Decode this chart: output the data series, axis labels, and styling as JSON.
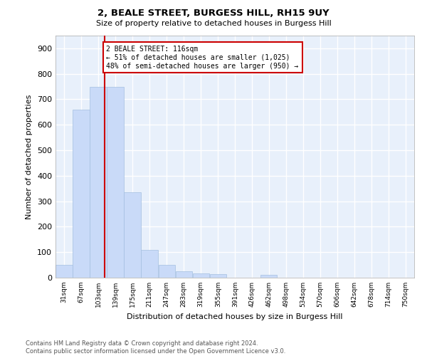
{
  "title1": "2, BEALE STREET, BURGESS HILL, RH15 9UY",
  "title2": "Size of property relative to detached houses in Burgess Hill",
  "xlabel": "Distribution of detached houses by size in Burgess Hill",
  "ylabel": "Number of detached properties",
  "bar_labels": [
    "31sqm",
    "67sqm",
    "103sqm",
    "139sqm",
    "175sqm",
    "211sqm",
    "247sqm",
    "283sqm",
    "319sqm",
    "355sqm",
    "391sqm",
    "426sqm",
    "462sqm",
    "498sqm",
    "534sqm",
    "570sqm",
    "606sqm",
    "642sqm",
    "678sqm",
    "714sqm",
    "750sqm"
  ],
  "bar_heights": [
    50,
    660,
    750,
    750,
    335,
    110,
    50,
    25,
    18,
    14,
    0,
    0,
    10,
    0,
    0,
    0,
    0,
    0,
    0,
    0,
    0
  ],
  "bar_color": "#c9daf8",
  "bar_edge_color": "#a4bfe0",
  "background_color": "#e8f0fb",
  "grid_color": "#ffffff",
  "property_line_color": "#cc0000",
  "annotation_text": "2 BEALE STREET: 116sqm\n← 51% of detached houses are smaller (1,025)\n48% of semi-detached houses are larger (950) →",
  "annotation_box_color": "#ffffff",
  "annotation_box_edge": "#cc0000",
  "ylim": [
    0,
    950
  ],
  "yticks": [
    0,
    100,
    200,
    300,
    400,
    500,
    600,
    700,
    800,
    900
  ],
  "footnote": "Contains HM Land Registry data © Crown copyright and database right 2024.\nContains public sector information licensed under the Open Government Licence v3.0.",
  "bin_width": 36,
  "property_sqm": 116
}
